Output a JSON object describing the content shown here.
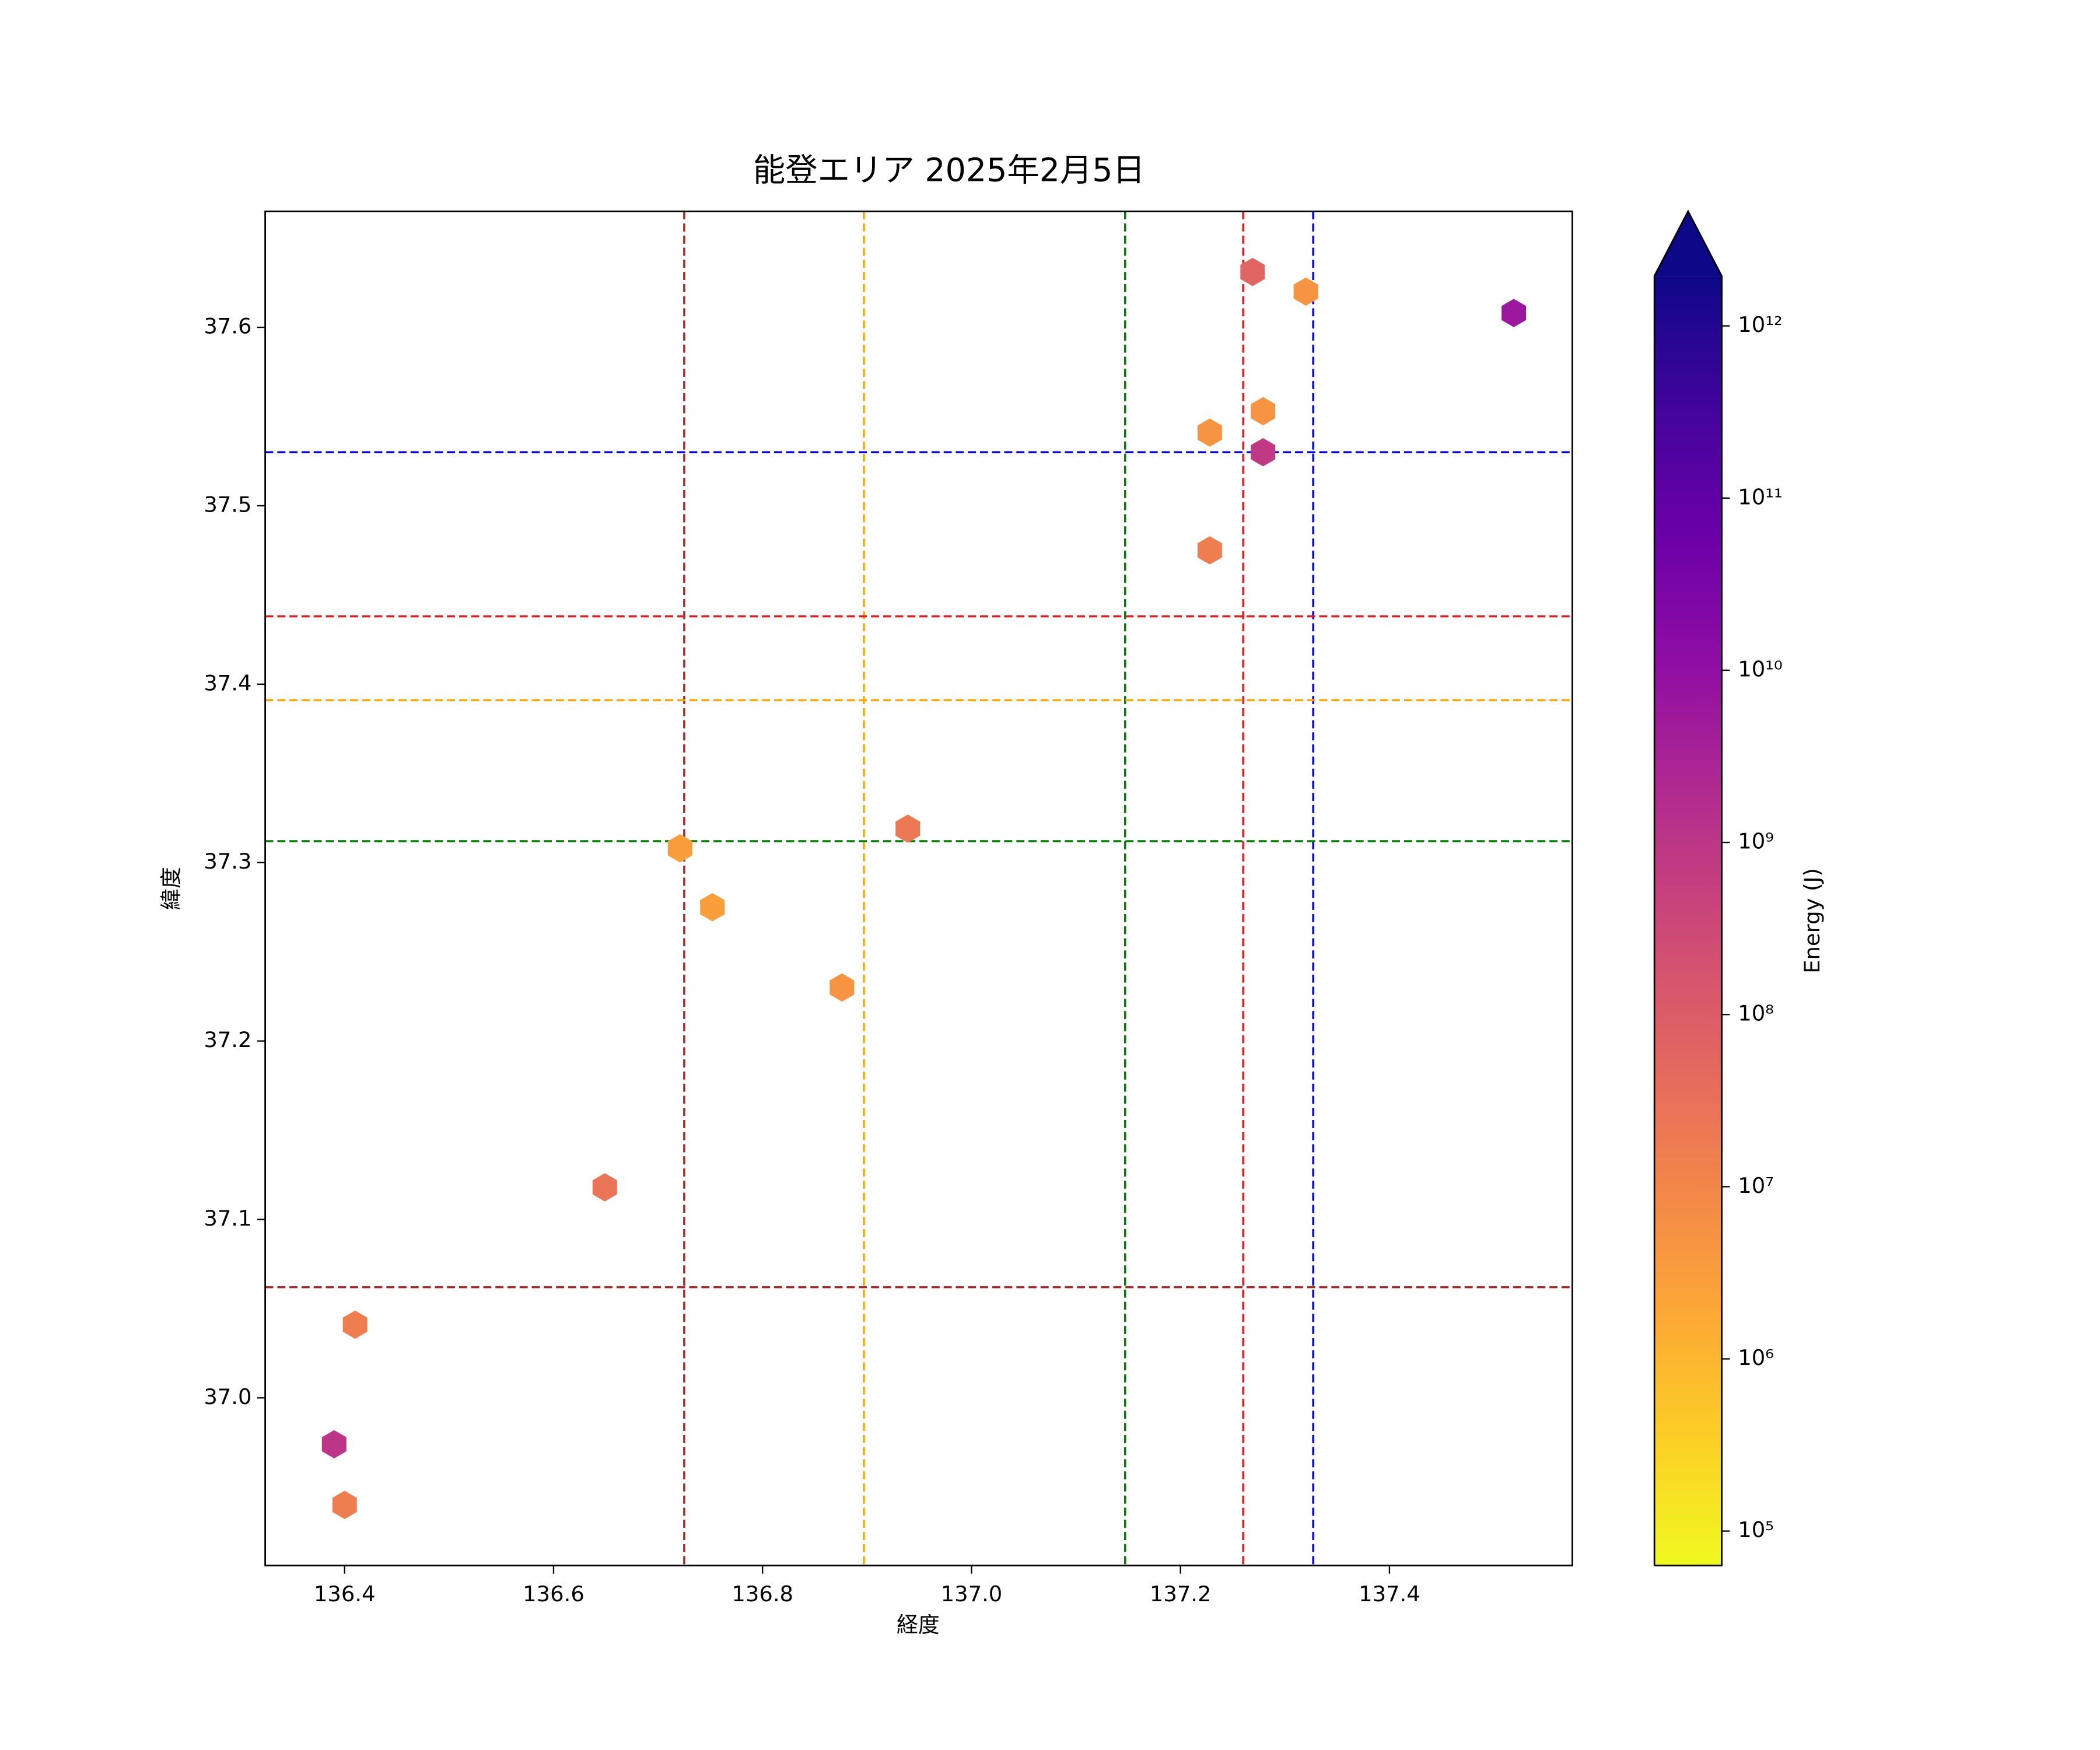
{
  "chart_data": {
    "type": "scatter",
    "title": "能登エリア 2025年2月5日",
    "x_label": "経度",
    "y_label": "緯度",
    "marker": "hexagon",
    "cmap": "plasma_r",
    "x": [
      137.519,
      137.269,
      137.32,
      137.279,
      137.228,
      137.279,
      137.228,
      136.939,
      136.721,
      136.752,
      136.876,
      136.649,
      136.41,
      136.39,
      136.4
    ],
    "y": [
      37.608,
      37.631,
      37.62,
      37.553,
      37.541,
      37.53,
      37.475,
      37.319,
      37.308,
      37.275,
      37.23,
      37.118,
      37.041,
      36.974,
      36.94
    ],
    "c": [
      6000000000,
      60000000,
      5000000,
      5000000,
      5000000,
      800000000,
      16000000,
      20000000,
      3000000,
      3000000,
      5000000,
      25000000,
      16000000,
      1000000000,
      16000000
    ],
    "xlim": [
      136.324,
      137.575
    ],
    "ylim": [
      36.906,
      37.665
    ],
    "xticks": [
      136.4,
      136.6,
      136.8,
      {
        "value": 137,
        "label": "137.0"
      },
      137.2,
      137.4
    ],
    "yticks": [
      {
        "value": 37,
        "label": "37.0"
      },
      37.1,
      37.2,
      37.3,
      37.4,
      37.5,
      37.6
    ],
    "vlines": [
      {
        "x": 136.725,
        "color": "#b22222"
      },
      {
        "x": 136.897,
        "color": "#ffa500"
      },
      {
        "x": 137.147,
        "color": "#008000"
      },
      {
        "x": 137.26,
        "color": "#e41a1c"
      },
      {
        "x": 137.327,
        "color": "#0000ff"
      }
    ],
    "hlines": [
      {
        "y": 37.53,
        "color": "#0000ff"
      },
      {
        "y": 37.438,
        "color": "#e41a1c"
      },
      {
        "y": 37.391,
        "color": "#ffa500"
      },
      {
        "y": 37.312,
        "color": "#008000"
      },
      {
        "y": 37.062,
        "color": "#b22222"
      }
    ],
    "colorbar": {
      "label": "Energy (J)",
      "log": true,
      "extend": "max",
      "clim": [
        63000,
        1950000000000
      ],
      "ticks": [
        {
          "value": 100000,
          "label": "10⁵"
        },
        {
          "value": 1000000,
          "label": "10⁶"
        },
        {
          "value": 10000000,
          "label": "10⁷"
        },
        {
          "value": 100000000,
          "label": "10⁸"
        },
        {
          "value": 1000000000,
          "label": "10⁹"
        },
        {
          "value": 10000000000,
          "label": "10¹⁰"
        },
        {
          "value": 100000000000,
          "label": "10¹¹"
        },
        {
          "value": 1000000000000,
          "label": "10¹²"
        }
      ]
    }
  }
}
